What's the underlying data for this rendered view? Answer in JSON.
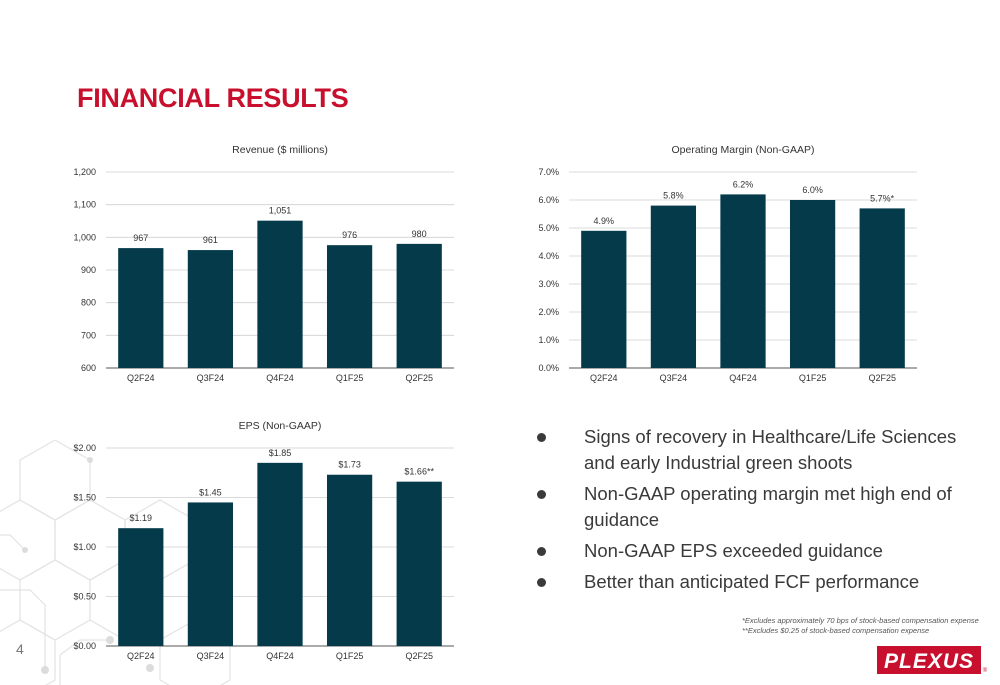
{
  "title": "FINANCIAL RESULTS",
  "page_number": "4",
  "brand": {
    "logo_text": "PLEXUS",
    "registered_mark": "®",
    "primary_color": "#c8102e",
    "bar_color": "#043a4a"
  },
  "bullets": [
    "Signs of recovery in Healthcare/Life Sciences and early Industrial green shoots",
    "Non-GAAP operating margin met high end of guidance",
    "Non-GAAP EPS exceeded guidance",
    "Better than anticipated FCF performance"
  ],
  "footnotes": [
    "*Excludes approximately 70 bps of stock-based compensation expense",
    "**Excludes $0.25 of stock-based compensation expense"
  ],
  "chart_data": [
    {
      "id": "revenue",
      "type": "bar",
      "title": "Revenue ($ millions)",
      "categories": [
        "Q2F24",
        "Q3F24",
        "Q4F24",
        "Q1F25",
        "Q2F25"
      ],
      "values": [
        967,
        961,
        1051,
        976,
        980
      ],
      "data_labels": [
        "967",
        "961",
        "1,051",
        "976",
        "980"
      ],
      "ylim": [
        600,
        1200
      ],
      "yticks": [
        600,
        700,
        800,
        900,
        1000,
        1100,
        1200
      ],
      "ytick_labels": [
        "600",
        "700",
        "800",
        "900",
        "1,000",
        "1,100",
        "1,200"
      ],
      "grid": true
    },
    {
      "id": "margin",
      "type": "bar",
      "title": "Operating Margin (Non-GAAP)",
      "categories": [
        "Q2F24",
        "Q3F24",
        "Q4F24",
        "Q1F25",
        "Q2F25"
      ],
      "values": [
        4.9,
        5.8,
        6.2,
        6.0,
        5.7
      ],
      "data_labels": [
        "4.9%",
        "5.8%",
        "6.2%",
        "6.0%",
        "5.7%*"
      ],
      "ylim": [
        0,
        7
      ],
      "yticks": [
        0,
        1,
        2,
        3,
        4,
        5,
        6,
        7
      ],
      "ytick_labels": [
        "0.0%",
        "1.0%",
        "2.0%",
        "3.0%",
        "4.0%",
        "5.0%",
        "6.0%",
        "7.0%"
      ],
      "grid": true
    },
    {
      "id": "eps",
      "type": "bar",
      "title": "EPS (Non-GAAP)",
      "categories": [
        "Q2F24",
        "Q3F24",
        "Q4F24",
        "Q1F25",
        "Q2F25"
      ],
      "values": [
        1.19,
        1.45,
        1.85,
        1.73,
        1.66
      ],
      "data_labels": [
        "$1.19",
        "$1.45",
        "$1.85",
        "$1.73",
        "$1.66**"
      ],
      "ylim": [
        0,
        2
      ],
      "yticks": [
        0,
        0.5,
        1,
        1.5,
        2
      ],
      "ytick_labels": [
        "$0.00",
        "$0.50",
        "$1.00",
        "$1.50",
        "$2.00"
      ],
      "grid": true
    }
  ]
}
